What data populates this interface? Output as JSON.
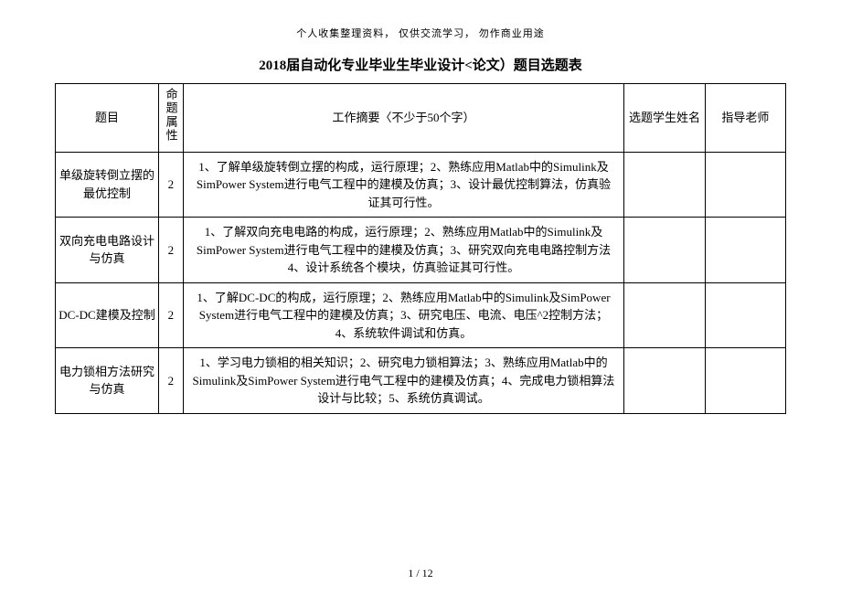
{
  "header_note": "个人收集整理资料， 仅供交流学习， 勿作商业用途",
  "title": "2018届自动化专业毕业生毕业设计<论文）题目选题表",
  "columns": {
    "topic": "题目",
    "attr": "命题属性",
    "desc": "工作摘要〈不少于50个字）",
    "student": "选题学生姓名",
    "teacher": "指导老师"
  },
  "rows": [
    {
      "topic": "单级旋转倒立摆的最优控制",
      "attr": "2",
      "desc": "1、了解单级旋转倒立摆的构成，运行原理；2、熟练应用Matlab中的Simulink及SimPower System进行电气工程中的建模及仿真；3、设计最优控制算法，仿真验证其可行性。",
      "student": "",
      "teacher": ""
    },
    {
      "topic": "双向充电电路设计与仿真",
      "attr": "2",
      "desc": "1、了解双向充电电路的构成，运行原理；2、熟练应用Matlab中的Simulink及SimPower System进行电气工程中的建模及仿真；3、研究双向充电电路控制方法4、设计系统各个模块，仿真验证其可行性。",
      "student": "",
      "teacher": ""
    },
    {
      "topic": "DC-DC建模及控制",
      "attr": "2",
      "desc": "1、了解DC-DC的构成，运行原理；2、熟练应用Matlab中的Simulink及SimPower System进行电气工程中的建模及仿真；3、研究电压、电流、电压^2控制方法；4、系统软件调试和仿真。",
      "student": "",
      "teacher": ""
    },
    {
      "topic": "电力锁相方法研究与仿真",
      "attr": "2",
      "desc": "1、学习电力锁相的相关知识；2、研究电力锁相算法；3、熟练应用Matlab中的Simulink及SimPower System进行电气工程中的建模及仿真；4、完成电力锁相算法设计与比较；5、系统仿真调试。",
      "student": "",
      "teacher": ""
    }
  ],
  "page_number": "1 / 12"
}
